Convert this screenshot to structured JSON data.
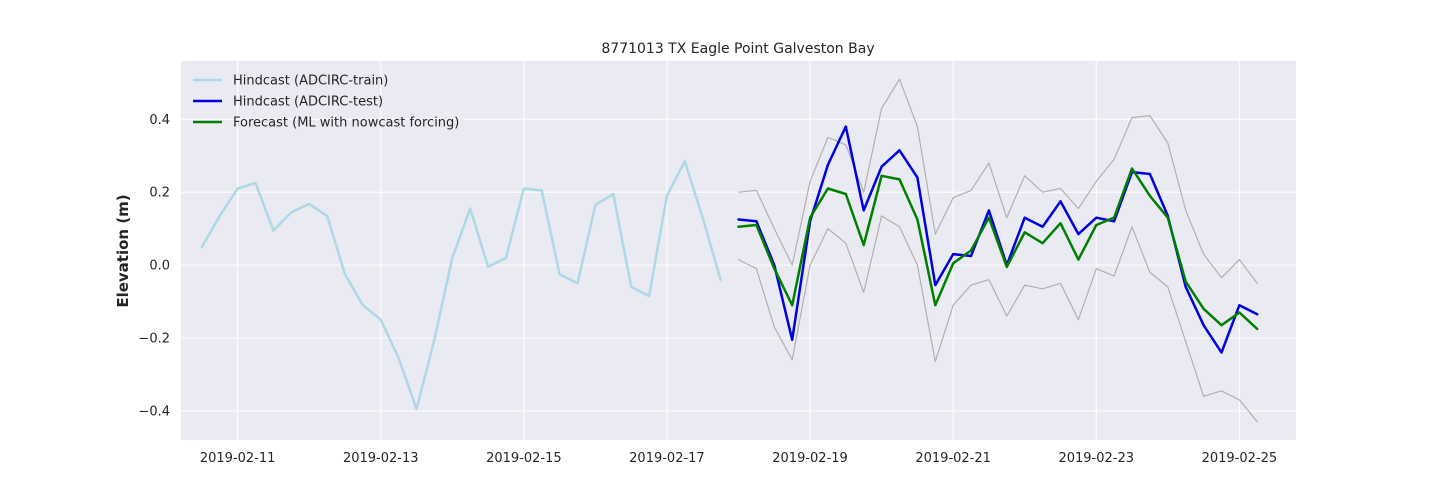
{
  "chart_data": {
    "type": "line",
    "title": "8771013 TX Eagle Point Galveston Bay",
    "xlabel": "",
    "ylabel": "Elevation (m)",
    "xlim": [
      "2019-02-10T05:00",
      "2019-02-25T19:00"
    ],
    "ylim": [
      -0.48,
      0.56
    ],
    "grid": true,
    "legend_position": "top-left",
    "x_ticks": [
      "2019-02-11",
      "2019-02-13",
      "2019-02-15",
      "2019-02-17",
      "2019-02-19",
      "2019-02-21",
      "2019-02-23",
      "2019-02-25"
    ],
    "y_ticks": [
      -0.4,
      -0.2,
      0.0,
      0.2,
      0.4
    ],
    "y_tick_labels": [
      "−0.4",
      "−0.2",
      "0.0",
      "0.2",
      "0.4"
    ],
    "series": [
      {
        "name": "Hindcast (ADCIRC-train)",
        "color": "#add8e6",
        "in_legend": true,
        "x": [
          "2019-02-10T12:00",
          "2019-02-10T18:00",
          "2019-02-11T00:00",
          "2019-02-11T06:00",
          "2019-02-11T12:00",
          "2019-02-11T18:00",
          "2019-02-12T00:00",
          "2019-02-12T06:00",
          "2019-02-12T12:00",
          "2019-02-12T18:00",
          "2019-02-13T00:00",
          "2019-02-13T06:00",
          "2019-02-13T12:00",
          "2019-02-13T18:00",
          "2019-02-14T00:00",
          "2019-02-14T06:00",
          "2019-02-14T12:00",
          "2019-02-14T18:00",
          "2019-02-15T00:00",
          "2019-02-15T06:00",
          "2019-02-15T12:00",
          "2019-02-15T18:00",
          "2019-02-16T00:00",
          "2019-02-16T06:00",
          "2019-02-16T12:00",
          "2019-02-16T18:00",
          "2019-02-17T00:00",
          "2019-02-17T06:00",
          "2019-02-17T12:00",
          "2019-02-17T18:00"
        ],
        "y": [
          0.05,
          0.135,
          0.21,
          0.225,
          0.095,
          0.145,
          0.168,
          0.135,
          -0.025,
          -0.11,
          -0.15,
          -0.255,
          -0.395,
          -0.205,
          0.02,
          0.155,
          -0.005,
          0.02,
          0.21,
          0.205,
          -0.025,
          -0.05,
          0.165,
          0.195,
          -0.06,
          -0.085,
          0.19,
          0.285,
          0.13,
          -0.04
        ]
      },
      {
        "name": "Hindcast (ADCIRC-test)",
        "color": "#0000e0",
        "in_legend": true,
        "x": [
          "2019-02-18T00:00",
          "2019-02-18T06:00",
          "2019-02-18T12:00",
          "2019-02-18T18:00",
          "2019-02-19T00:00",
          "2019-02-19T06:00",
          "2019-02-19T12:00",
          "2019-02-19T18:00",
          "2019-02-20T00:00",
          "2019-02-20T06:00",
          "2019-02-20T12:00",
          "2019-02-20T18:00",
          "2019-02-21T00:00",
          "2019-02-21T06:00",
          "2019-02-21T12:00",
          "2019-02-21T18:00",
          "2019-02-22T00:00",
          "2019-02-22T06:00",
          "2019-02-22T12:00",
          "2019-02-22T18:00",
          "2019-02-23T00:00",
          "2019-02-23T06:00",
          "2019-02-23T12:00",
          "2019-02-23T18:00",
          "2019-02-24T00:00",
          "2019-02-24T06:00",
          "2019-02-24T12:00",
          "2019-02-24T18:00",
          "2019-02-25T00:00",
          "2019-02-25T06:00"
        ],
        "y": [
          0.125,
          0.12,
          0.0,
          -0.205,
          0.12,
          0.275,
          0.38,
          0.15,
          0.27,
          0.315,
          0.24,
          -0.055,
          0.03,
          0.025,
          0.15,
          0.0,
          0.13,
          0.105,
          0.175,
          0.085,
          0.13,
          0.12,
          0.255,
          0.25,
          0.135,
          -0.06,
          -0.165,
          -0.24,
          -0.11,
          -0.135
        ]
      },
      {
        "name": "Forecast (ML with nowcast forcing)",
        "color": "#008000",
        "in_legend": true,
        "x": [
          "2019-02-18T00:00",
          "2019-02-18T06:00",
          "2019-02-18T12:00",
          "2019-02-18T18:00",
          "2019-02-19T00:00",
          "2019-02-19T06:00",
          "2019-02-19T12:00",
          "2019-02-19T18:00",
          "2019-02-20T00:00",
          "2019-02-20T06:00",
          "2019-02-20T12:00",
          "2019-02-20T18:00",
          "2019-02-21T00:00",
          "2019-02-21T06:00",
          "2019-02-21T12:00",
          "2019-02-21T18:00",
          "2019-02-22T00:00",
          "2019-02-22T06:00",
          "2019-02-22T12:00",
          "2019-02-22T18:00",
          "2019-02-23T00:00",
          "2019-02-23T06:00",
          "2019-02-23T12:00",
          "2019-02-23T18:00",
          "2019-02-24T00:00",
          "2019-02-24T06:00",
          "2019-02-24T12:00",
          "2019-02-24T18:00",
          "2019-02-25T00:00",
          "2019-02-25T06:00"
        ],
        "y": [
          0.105,
          0.11,
          -0.01,
          -0.11,
          0.13,
          0.21,
          0.195,
          0.055,
          0.245,
          0.235,
          0.125,
          -0.11,
          0.005,
          0.04,
          0.13,
          -0.005,
          0.09,
          0.06,
          0.115,
          0.015,
          0.11,
          0.13,
          0.265,
          0.19,
          0.13,
          -0.045,
          -0.12,
          -0.165,
          -0.13,
          -0.175
        ]
      },
      {
        "name": "",
        "color": "#b0b0b0",
        "in_legend": false,
        "x": [
          "2019-02-18T00:00",
          "2019-02-18T06:00",
          "2019-02-18T12:00",
          "2019-02-18T18:00",
          "2019-02-19T00:00",
          "2019-02-19T06:00",
          "2019-02-19T12:00",
          "2019-02-19T18:00",
          "2019-02-20T00:00",
          "2019-02-20T06:00",
          "2019-02-20T12:00",
          "2019-02-20T18:00",
          "2019-02-21T00:00",
          "2019-02-21T06:00",
          "2019-02-21T12:00",
          "2019-02-21T18:00",
          "2019-02-22T00:00",
          "2019-02-22T06:00",
          "2019-02-22T12:00",
          "2019-02-22T18:00",
          "2019-02-23T00:00",
          "2019-02-23T06:00",
          "2019-02-23T12:00",
          "2019-02-23T18:00",
          "2019-02-24T00:00",
          "2019-02-24T06:00",
          "2019-02-24T12:00",
          "2019-02-24T18:00",
          "2019-02-25T00:00",
          "2019-02-25T06:00"
        ],
        "y": [
          0.2,
          0.205,
          0.1,
          0.0,
          0.23,
          0.35,
          0.33,
          0.2,
          0.43,
          0.51,
          0.38,
          0.085,
          0.185,
          0.205,
          0.28,
          0.13,
          0.245,
          0.2,
          0.21,
          0.155,
          0.23,
          0.29,
          0.405,
          0.41,
          0.335,
          0.15,
          0.03,
          -0.035,
          0.015,
          -0.05
        ]
      },
      {
        "name": "",
        "color": "#b0b0b0",
        "in_legend": false,
        "x": [
          "2019-02-18T00:00",
          "2019-02-18T06:00",
          "2019-02-18T12:00",
          "2019-02-18T18:00",
          "2019-02-19T00:00",
          "2019-02-19T06:00",
          "2019-02-19T12:00",
          "2019-02-19T18:00",
          "2019-02-20T00:00",
          "2019-02-20T06:00",
          "2019-02-20T12:00",
          "2019-02-20T18:00",
          "2019-02-21T00:00",
          "2019-02-21T06:00",
          "2019-02-21T12:00",
          "2019-02-21T18:00",
          "2019-02-22T00:00",
          "2019-02-22T06:00",
          "2019-02-22T12:00",
          "2019-02-22T18:00",
          "2019-02-23T00:00",
          "2019-02-23T06:00",
          "2019-02-23T12:00",
          "2019-02-23T18:00",
          "2019-02-24T00:00",
          "2019-02-24T06:00",
          "2019-02-24T12:00",
          "2019-02-24T18:00",
          "2019-02-25T00:00",
          "2019-02-25T06:00"
        ],
        "y": [
          0.015,
          -0.01,
          -0.17,
          -0.26,
          0.0,
          0.1,
          0.06,
          -0.075,
          0.135,
          0.105,
          0.0,
          -0.265,
          -0.11,
          -0.055,
          -0.04,
          -0.14,
          -0.055,
          -0.065,
          -0.05,
          -0.15,
          -0.01,
          -0.03,
          0.105,
          -0.02,
          -0.06,
          -0.21,
          -0.36,
          -0.345,
          -0.37,
          -0.43
        ]
      }
    ]
  }
}
